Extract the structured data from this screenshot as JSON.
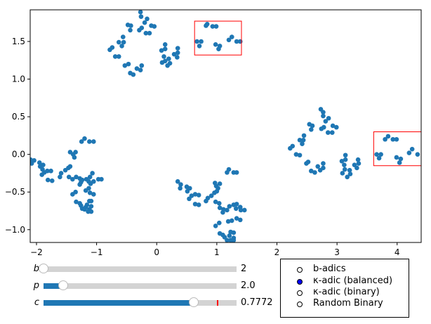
{
  "chart_data": {
    "type": "scatter",
    "xlim": [
      -2.105,
      4.4
    ],
    "ylim": [
      -1.17,
      1.92
    ],
    "xticks": [
      -2,
      -1,
      0,
      1,
      2,
      3,
      4
    ],
    "xtick_labels": [
      "−2",
      "−1",
      "0",
      "1",
      "2",
      "3",
      "4"
    ],
    "yticks": [
      -1.0,
      -0.5,
      0.0,
      0.5,
      1.0,
      1.5
    ],
    "ytick_labels": [
      "−1.0",
      "−0.5",
      "0.0",
      "0.5",
      "1.0",
      "1.5"
    ],
    "grid": false,
    "point_color": "#1f77b4",
    "highlight_color": "#ff0000",
    "highlight_boxes": [
      {
        "x0": 0.63,
        "x1": 1.41,
        "y0": 1.32,
        "y1": 1.77
      },
      {
        "x0": 3.61,
        "x1": 4.4,
        "y0": -0.15,
        "y1": 0.3
      }
    ],
    "points": [
      [
        -0.27,
        1.89
      ],
      [
        -0.26,
        1.83
      ],
      [
        -0.16,
        1.8
      ],
      [
        -0.2,
        1.75
      ],
      [
        -0.48,
        1.72
      ],
      [
        -0.43,
        1.71
      ],
      [
        -0.44,
        1.65
      ],
      [
        -0.29,
        1.65
      ],
      [
        -0.25,
        1.68
      ],
      [
        -0.09,
        1.71
      ],
      [
        -0.04,
        1.7
      ],
      [
        -0.18,
        1.61
      ],
      [
        -0.12,
        1.61
      ],
      [
        -0.56,
        1.56
      ],
      [
        -0.63,
        1.49
      ],
      [
        -0.58,
        1.44
      ],
      [
        -0.55,
        1.49
      ],
      [
        -0.78,
        1.39
      ],
      [
        -0.74,
        1.42
      ],
      [
        -0.69,
        1.3
      ],
      [
        -0.63,
        1.3
      ],
      [
        -0.53,
        1.18
      ],
      [
        -0.47,
        1.2
      ],
      [
        -0.44,
        1.08
      ],
      [
        -0.39,
        1.06
      ],
      [
        -0.33,
        1.14
      ],
      [
        -0.25,
        1.18
      ],
      [
        -0.27,
        1.12
      ],
      [
        0.14,
        1.46
      ],
      [
        0.08,
        1.38
      ],
      [
        0.14,
        1.4
      ],
      [
        0.12,
        1.3
      ],
      [
        0.14,
        1.24
      ],
      [
        0.09,
        1.22
      ],
      [
        0.2,
        1.27
      ],
      [
        0.22,
        1.21
      ],
      [
        0.18,
        1.18
      ],
      [
        0.35,
        1.41
      ],
      [
        0.35,
        1.35
      ],
      [
        0.29,
        1.33
      ],
      [
        0.34,
        1.29
      ],
      [
        0.67,
        1.5
      ],
      [
        0.74,
        1.5
      ],
      [
        0.71,
        1.44
      ],
      [
        0.82,
        1.71
      ],
      [
        0.84,
        1.73
      ],
      [
        0.93,
        1.7
      ],
      [
        0.99,
        1.7
      ],
      [
        0.98,
        1.46
      ],
      [
        1.05,
        1.44
      ],
      [
        1.03,
        1.4
      ],
      [
        1.2,
        1.52
      ],
      [
        1.25,
        1.56
      ],
      [
        1.33,
        1.5
      ],
      [
        1.39,
        1.5
      ],
      [
        2.73,
        0.6
      ],
      [
        2.77,
        0.56
      ],
      [
        2.77,
        0.51
      ],
      [
        2.81,
        0.44
      ],
      [
        2.86,
        0.48
      ],
      [
        2.54,
        0.4
      ],
      [
        2.59,
        0.38
      ],
      [
        2.57,
        0.33
      ],
      [
        2.74,
        0.34
      ],
      [
        2.78,
        0.36
      ],
      [
        2.85,
        0.29
      ],
      [
        2.92,
        0.29
      ],
      [
        2.93,
        0.38
      ],
      [
        2.99,
        0.36
      ],
      [
        2.22,
        0.08
      ],
      [
        2.26,
        0.11
      ],
      [
        2.38,
        0.19
      ],
      [
        2.44,
        0.19
      ],
      [
        2.42,
        0.14
      ],
      [
        2.45,
        0.25
      ],
      [
        2.32,
        0.0
      ],
      [
        2.38,
        -0.01
      ],
      [
        2.49,
        -0.12
      ],
      [
        2.52,
        -0.1
      ],
      [
        2.57,
        -0.22
      ],
      [
        2.63,
        -0.24
      ],
      [
        2.68,
        -0.16
      ],
      [
        2.77,
        -0.12
      ],
      [
        2.77,
        -0.18
      ],
      [
        2.72,
        -0.21
      ],
      [
        3.08,
        -0.09
      ],
      [
        3.14,
        -0.01
      ],
      [
        3.14,
        -0.07
      ],
      [
        3.12,
        -0.14
      ],
      [
        3.13,
        -0.2
      ],
      [
        3.09,
        -0.25
      ],
      [
        3.17,
        -0.3
      ],
      [
        3.21,
        -0.21
      ],
      [
        3.22,
        -0.26
      ],
      [
        3.29,
        -0.14
      ],
      [
        3.33,
        -0.18
      ],
      [
        3.35,
        -0.07
      ],
      [
        3.36,
        -0.12
      ],
      [
        3.66,
        0.0
      ],
      [
        3.73,
        0.0
      ],
      [
        3.7,
        -0.05
      ],
      [
        3.8,
        0.2
      ],
      [
        3.85,
        0.24
      ],
      [
        3.93,
        0.2
      ],
      [
        3.99,
        0.2
      ],
      [
        3.99,
        -0.04
      ],
      [
        4.06,
        -0.06
      ],
      [
        4.04,
        -0.11
      ],
      [
        4.2,
        0.02
      ],
      [
        4.25,
        0.07
      ],
      [
        4.34,
        0.0
      ],
      [
        0.35,
        -0.36
      ],
      [
        0.4,
        -0.4
      ],
      [
        0.39,
        -0.45
      ],
      [
        0.5,
        -0.43
      ],
      [
        0.55,
        -0.45
      ],
      [
        0.51,
        -0.49
      ],
      [
        0.54,
        -0.59
      ],
      [
        0.58,
        -0.55
      ],
      [
        0.64,
        -0.53
      ],
      [
        0.7,
        -0.54
      ],
      [
        0.64,
        -0.66
      ],
      [
        0.7,
        -0.67
      ],
      [
        0.82,
        -0.62
      ],
      [
        0.85,
        -0.58
      ],
      [
        0.91,
        -0.55
      ],
      [
        0.96,
        -0.51
      ],
      [
        1.0,
        -0.49
      ],
      [
        1.02,
        -0.45
      ],
      [
        0.97,
        -0.38
      ],
      [
        1.05,
        -0.39
      ],
      [
        0.99,
        -0.42
      ],
      [
        0.98,
        -0.63
      ],
      [
        1.04,
        -0.65
      ],
      [
        1.05,
        -0.71
      ],
      [
        1.11,
        -0.73
      ],
      [
        1.1,
        -0.77
      ],
      [
        1.17,
        -0.74
      ],
      [
        1.21,
        -0.69
      ],
      [
        1.28,
        -0.67
      ],
      [
        1.33,
        -0.66
      ],
      [
        1.32,
        -0.72
      ],
      [
        1.39,
        -0.7
      ],
      [
        1.4,
        -0.74
      ],
      [
        1.46,
        -0.74
      ],
      [
        1.17,
        -0.24
      ],
      [
        1.2,
        -0.2
      ],
      [
        1.28,
        -0.24
      ],
      [
        1.33,
        -0.24
      ],
      [
        0.98,
        -0.95
      ],
      [
        1.04,
        -0.91
      ],
      [
        1.19,
        -0.89
      ],
      [
        1.25,
        -0.88
      ],
      [
        1.33,
        -0.85
      ],
      [
        1.39,
        -0.87
      ],
      [
        1.05,
        -1.05
      ],
      [
        1.1,
        -1.07
      ],
      [
        1.13,
        -1.1
      ],
      [
        1.21,
        -1.08
      ],
      [
        1.23,
        -1.03
      ],
      [
        1.28,
        -1.04
      ],
      [
        1.28,
        -1.11
      ],
      [
        1.17,
        -1.14
      ],
      [
        1.23,
        -1.14
      ],
      [
        1.28,
        -1.14
      ],
      [
        -2.1,
        -0.07
      ],
      [
        -2.08,
        -0.12
      ],
      [
        -2.04,
        -0.08
      ],
      [
        -1.95,
        -0.11
      ],
      [
        -1.94,
        -0.16
      ],
      [
        -1.9,
        -0.2
      ],
      [
        -1.89,
        -0.14
      ],
      [
        -1.91,
        -0.27
      ],
      [
        -1.87,
        -0.24
      ],
      [
        -1.82,
        -0.22
      ],
      [
        -1.76,
        -0.22
      ],
      [
        -1.81,
        -0.34
      ],
      [
        -1.74,
        -0.35
      ],
      [
        -1.61,
        -0.3
      ],
      [
        -1.59,
        -0.25
      ],
      [
        -1.52,
        -0.21
      ],
      [
        -1.47,
        -0.18
      ],
      [
        -1.44,
        -0.16
      ],
      [
        -1.46,
        -0.3
      ],
      [
        -1.4,
        -0.33
      ],
      [
        -1.44,
        0.03
      ],
      [
        -1.39,
        0.0
      ],
      [
        -1.35,
        0.03
      ],
      [
        -1.37,
        -0.04
      ],
      [
        -1.25,
        0.17
      ],
      [
        -1.2,
        0.21
      ],
      [
        -1.12,
        0.17
      ],
      [
        -1.05,
        0.17
      ],
      [
        -1.34,
        -0.3
      ],
      [
        -1.28,
        -0.32
      ],
      [
        -1.26,
        -0.37
      ],
      [
        -1.24,
        -0.34
      ],
      [
        -1.28,
        -0.4
      ],
      [
        -1.17,
        -0.33
      ],
      [
        -1.11,
        -0.3
      ],
      [
        -1.07,
        -0.25
      ],
      [
        -1.13,
        -0.36
      ],
      [
        -1.1,
        -0.39
      ],
      [
        -1.05,
        -0.36
      ],
      [
        -0.97,
        -0.33
      ],
      [
        -0.92,
        -0.33
      ],
      [
        -1.4,
        -0.53
      ],
      [
        -1.35,
        -0.5
      ],
      [
        -1.18,
        -0.48
      ],
      [
        -1.13,
        -0.45
      ],
      [
        -1.11,
        -0.51
      ],
      [
        -1.05,
        -0.53
      ],
      [
        -1.34,
        -0.63
      ],
      [
        -1.28,
        -0.65
      ],
      [
        -1.26,
        -0.68
      ],
      [
        -1.24,
        -0.72
      ],
      [
        -1.18,
        -0.7
      ],
      [
        -1.16,
        -0.67
      ],
      [
        -1.12,
        -0.62
      ],
      [
        -1.09,
        -0.62
      ],
      [
        -1.09,
        -0.69
      ],
      [
        -1.12,
        -0.73
      ],
      [
        -1.2,
        -0.73
      ],
      [
        -1.14,
        -0.76
      ],
      [
        -1.09,
        -0.76
      ]
    ]
  },
  "sliders": [
    {
      "label": "b",
      "value_text": "2",
      "fraction": 0.0
    },
    {
      "label": "p",
      "value_text": "2.0",
      "fraction": 0.1
    },
    {
      "label": "c",
      "value_text": "0.7772",
      "fraction": 0.7772,
      "initial_fraction": 0.9
    }
  ],
  "radio": {
    "options": [
      "b-adics",
      "κ-adic (balanced)",
      "κ-adic (binary)",
      "Random Binary"
    ],
    "selected": 1,
    "selected_color": "#0000ff"
  }
}
